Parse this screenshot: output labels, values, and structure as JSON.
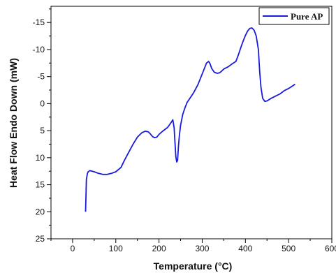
{
  "chart_data": {
    "type": "line",
    "xlabel": "Temperature (°C)",
    "ylabel": "Heat Flow Endo Down (mW)",
    "xlim": [
      -50,
      600
    ],
    "ylim": [
      25,
      -18
    ],
    "y_inverted": true,
    "x_ticks": [
      0,
      100,
      200,
      300,
      400,
      500,
      600
    ],
    "y_ticks": [
      -15,
      -10,
      -5,
      0,
      5,
      10,
      15,
      20,
      25
    ],
    "grid": false,
    "legend_position": "top-right",
    "series": [
      {
        "name": "Pure AP",
        "color": "#1a1adc",
        "x": [
          30,
          31,
          32,
          34,
          36,
          40,
          50,
          60,
          70,
          80,
          90,
          100,
          112,
          120,
          130,
          140,
          150,
          160,
          168,
          175,
          180,
          185,
          190,
          195,
          200,
          210,
          220,
          228,
          232,
          235,
          237,
          239,
          241,
          243,
          245,
          247,
          250,
          255,
          260,
          265,
          270,
          280,
          290,
          300,
          305,
          310,
          315,
          318,
          322,
          328,
          335,
          340,
          345,
          350,
          360,
          370,
          378,
          380,
          385,
          390,
          395,
          400,
          405,
          410,
          415,
          420,
          425,
          430,
          433,
          436,
          440,
          445,
          450,
          460,
          470,
          480,
          490,
          500,
          510,
          515
        ],
        "y": [
          20,
          17,
          14,
          13,
          12.6,
          12.4,
          12.6,
          12.9,
          13.1,
          13.1,
          12.9,
          12.6,
          11.8,
          10.5,
          9,
          7.5,
          6.2,
          5.4,
          5.1,
          5.2,
          5.6,
          6.1,
          6.3,
          6.2,
          5.7,
          5,
          4.4,
          3.5,
          3,
          4.5,
          7.2,
          9.8,
          10.8,
          10.5,
          8,
          6,
          4,
          2,
          0.8,
          -0.2,
          -0.8,
          -2,
          -3.5,
          -5.5,
          -6.5,
          -7.5,
          -7.8,
          -7.4,
          -6.5,
          -5.8,
          -5.6,
          -5.7,
          -6,
          -6.4,
          -6.8,
          -7.4,
          -7.8,
          -8.2,
          -9.3,
          -10.5,
          -11.6,
          -12.6,
          -13.4,
          -13.9,
          -14,
          -13.6,
          -12.5,
          -10,
          -6,
          -3,
          -1,
          -0.4,
          -0.5,
          -1,
          -1.4,
          -1.8,
          -2.4,
          -2.8,
          -3.3,
          -3.6
        ]
      }
    ]
  }
}
